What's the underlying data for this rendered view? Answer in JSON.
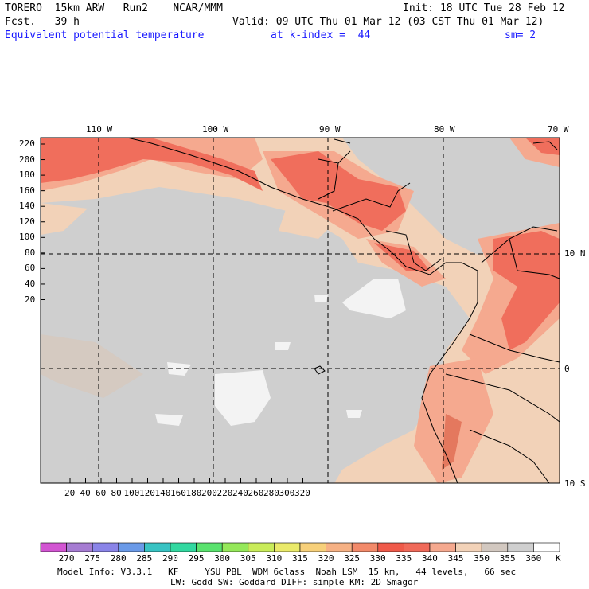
{
  "header": {
    "line1_left": "TORERO  15km ARW   Run2    NCAR/MMM",
    "line1_right": "Init: 18 UTC Tue 28 Feb 12",
    "line2_left": "Fcst.   39 h",
    "line2_right": "Valid: 09 UTC Thu 01 Mar 12 (03 CST Thu 01 Mar 12)",
    "field_name": "Equivalent potential temperature",
    "level": "at k-index =  44",
    "smooth": "sm= 2"
  },
  "map": {
    "lon_labels": [
      "110 W",
      "100 W",
      "90 W",
      "80 W",
      "70 W"
    ],
    "lat_labels": [
      "10 N",
      "0",
      "10 S"
    ],
    "y_ticks": [
      "220",
      "200",
      "180",
      "160",
      "140",
      "120",
      "100",
      "80",
      "60",
      "40",
      "20"
    ],
    "x_ticks": [
      "20",
      "40",
      "60",
      "80",
      "100",
      "120",
      "140",
      "160",
      "180",
      "200",
      "220",
      "240",
      "260",
      "280",
      "300",
      "320"
    ],
    "colors": {
      "background_gray": "#cfcfcf",
      "warm_light": "#f2d2b8",
      "warm_mid": "#f5a98f",
      "warm_high": "#f06e5c",
      "warm_max": "#e84a3a",
      "cold_white": "#f3f3f3"
    }
  },
  "colorbar": {
    "labels": [
      "270",
      "275",
      "280",
      "285",
      "290",
      "295",
      "300",
      "305",
      "310",
      "315",
      "320",
      "325",
      "330",
      "335",
      "340",
      "345",
      "350",
      "355",
      "360"
    ],
    "unit": "K",
    "colors": [
      "#d255d2",
      "#a67cd2",
      "#8a84e8",
      "#6a9ae8",
      "#38c3c3",
      "#32d8a0",
      "#5ae26e",
      "#95e85a",
      "#c9ec5a",
      "#eaea6a",
      "#f7d07a",
      "#f6b184",
      "#f28a6a",
      "#ef5a4a",
      "#f06a5a",
      "#f5a98f",
      "#f2d2b8",
      "#d2c8c0",
      "#cfcfcf",
      "#ffffff"
    ]
  },
  "footer": {
    "line1": "Model Info: V3.3.1   KF     YSU PBL  WDM 6class  Noah LSM  15 km,   44 levels,   66 sec",
    "line2": "LW: Godd SW: Goddard DIFF: simple KM: 2D Smagor"
  }
}
